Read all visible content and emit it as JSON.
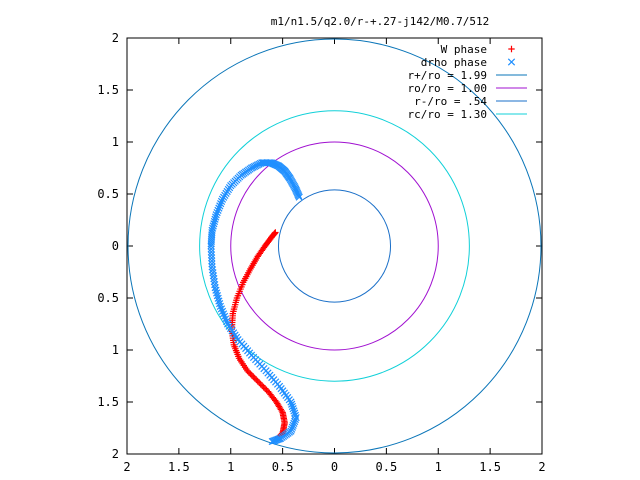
{
  "chart_data": {
    "type": "scatter",
    "title": "m1/n1.5/q2.0/r-+.27-j142/M0.7/512",
    "xlabel": "",
    "ylabel": "",
    "xlim": [
      -2,
      2
    ],
    "ylim": [
      -2,
      2
    ],
    "xticks": [
      -2,
      -1.5,
      -1,
      -0.5,
      0,
      0.5,
      1,
      1.5,
      2
    ],
    "xtick_labels": [
      "2",
      "1.5",
      "1",
      "0.5",
      "0",
      "0.5",
      "1",
      "1.5",
      "2"
    ],
    "yticks": [
      2,
      1.5,
      1,
      0.5,
      0,
      -0.5,
      -1,
      -1.5,
      -2
    ],
    "ytick_labels": [
      "2",
      "1.5",
      "1",
      "0.5",
      "0",
      "0.5",
      "1",
      "1.5",
      "2"
    ],
    "grid": false,
    "legend_position": "top-right",
    "series": [
      {
        "name": "W phase",
        "kind": "points",
        "marker": "plus",
        "color": "#ff0000",
        "x": [
          -0.55,
          -0.5,
          -0.48,
          -0.5,
          -0.56,
          -0.64,
          -0.74,
          -0.84,
          -0.92,
          -0.97,
          -0.99,
          -0.98,
          -0.94,
          -0.88,
          -0.81,
          -0.74,
          -0.67,
          -0.61,
          -0.57
        ],
        "y": [
          -1.85,
          -1.8,
          -1.7,
          -1.6,
          -1.5,
          -1.4,
          -1.3,
          -1.2,
          -1.08,
          -0.95,
          -0.8,
          -0.65,
          -0.5,
          -0.35,
          -0.22,
          -0.1,
          0.0,
          0.08,
          0.13
        ]
      },
      {
        "name": "drho phase",
        "kind": "points",
        "marker": "cross",
        "color": "#1f8fff",
        "x": [
          -0.6,
          -0.52,
          -0.42,
          -0.37,
          -0.42,
          -0.53,
          -0.66,
          -0.8,
          -0.93,
          -1.03,
          -1.1,
          -1.15,
          -1.18,
          -1.19,
          -1.18,
          -1.14,
          -1.08,
          -1.0,
          -0.9,
          -0.8,
          -0.7,
          -0.61,
          -0.54,
          -0.48,
          -0.43,
          -0.38,
          -0.34
        ],
        "y": [
          -1.88,
          -1.85,
          -1.78,
          -1.65,
          -1.5,
          -1.35,
          -1.2,
          -1.05,
          -0.9,
          -0.75,
          -0.58,
          -0.4,
          -0.2,
          0.0,
          0.15,
          0.3,
          0.45,
          0.58,
          0.68,
          0.75,
          0.8,
          0.8,
          0.77,
          0.72,
          0.65,
          0.56,
          0.47
        ]
      },
      {
        "name": "r+/ro = 1.99",
        "kind": "circle",
        "radius": 1.99,
        "color": "#0a75b8"
      },
      {
        "name": "ro/ro = 1.00",
        "kind": "circle",
        "radius": 1.0,
        "color": "#a010d0"
      },
      {
        "name": "r-/ro = .54",
        "kind": "circle",
        "radius": 0.54,
        "color": "#1a6fc8"
      },
      {
        "name": "rc/ro = 1.30",
        "kind": "circle",
        "radius": 1.3,
        "color": "#10d0d8"
      }
    ],
    "legend": [
      {
        "label": "W phase"
      },
      {
        "label": "drho phase"
      },
      {
        "label": "r+/ro = 1.99"
      },
      {
        "label": "ro/ro = 1.00"
      },
      {
        "label": "r-/ro = .54"
      },
      {
        "label": "rc/ro = 1.30"
      }
    ]
  }
}
